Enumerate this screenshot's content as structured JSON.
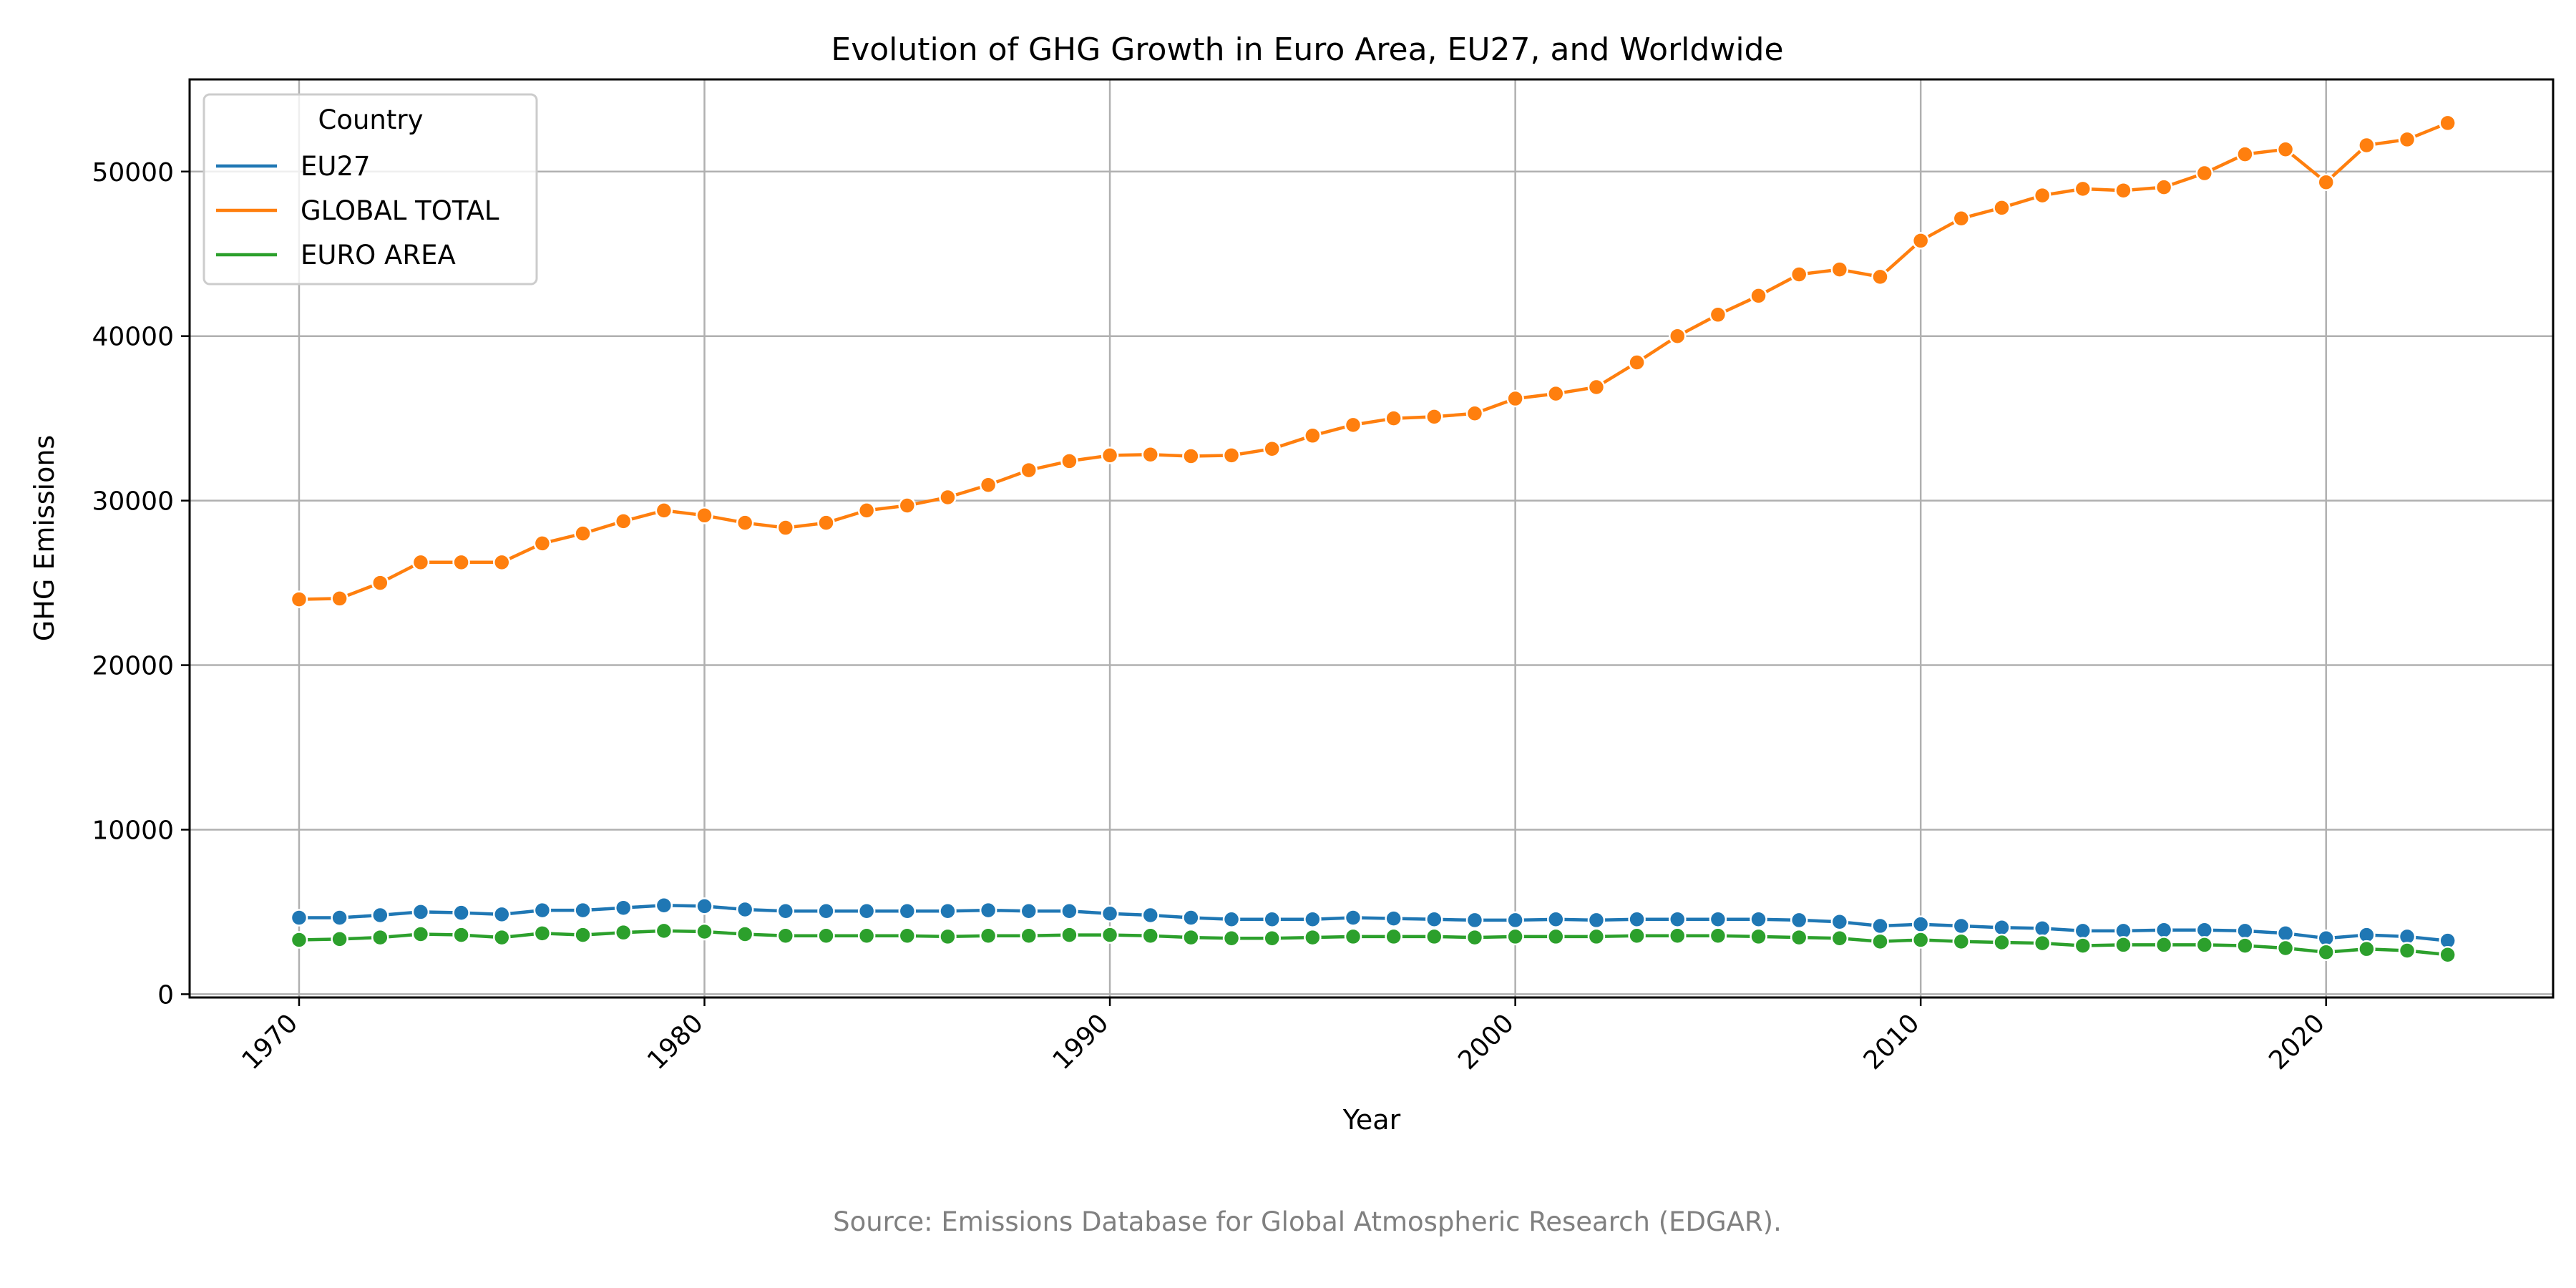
{
  "chart_data": {
    "type": "line",
    "title": "Evolution of GHG Growth in Euro Area, EU27, and Worldwide",
    "xlabel": "Year",
    "ylabel": "GHG Emissions",
    "xlim": [
      1967.3,
      2025.6
    ],
    "ylim": [
      -200,
      55600
    ],
    "x_ticks": [
      1970,
      1980,
      1990,
      2000,
      2010,
      2020
    ],
    "y_ticks": [
      0,
      10000,
      20000,
      30000,
      40000,
      50000
    ],
    "grid": true,
    "legend": {
      "title": "Country",
      "placement": "top-left"
    },
    "source_note": "Source: Emissions Database for Global Atmospheric Research (EDGAR).",
    "x": [
      1970,
      1971,
      1972,
      1973,
      1974,
      1975,
      1976,
      1977,
      1978,
      1979,
      1980,
      1981,
      1982,
      1983,
      1984,
      1985,
      1986,
      1987,
      1988,
      1989,
      1990,
      1991,
      1992,
      1993,
      1994,
      1995,
      1996,
      1997,
      1998,
      1999,
      2000,
      2001,
      2002,
      2003,
      2004,
      2005,
      2006,
      2007,
      2008,
      2009,
      2010,
      2011,
      2012,
      2013,
      2014,
      2015,
      2016,
      2017,
      2018,
      2019,
      2020,
      2021,
      2022,
      2023
    ],
    "series": [
      {
        "name": "EU27",
        "color": "#1f77b4",
        "values": [
          4650,
          4650,
          4800,
          5000,
          4950,
          4850,
          5100,
          5100,
          5250,
          5400,
          5350,
          5150,
          5050,
          5050,
          5050,
          5050,
          5050,
          5100,
          5050,
          5050,
          4900,
          4800,
          4650,
          4550,
          4550,
          4550,
          4650,
          4600,
          4550,
          4500,
          4500,
          4550,
          4500,
          4550,
          4550,
          4550,
          4550,
          4500,
          4400,
          4150,
          4250,
          4150,
          4050,
          4000,
          3850,
          3850,
          3900,
          3900,
          3850,
          3700,
          3400,
          3600,
          3500,
          3250
        ]
      },
      {
        "name": "GLOBAL TOTAL",
        "color": "#ff7f0e",
        "values": [
          24000,
          24050,
          25000,
          26250,
          26250,
          26250,
          27400,
          28000,
          28750,
          29400,
          29100,
          28650,
          28350,
          28650,
          29400,
          29700,
          30200,
          30950,
          31850,
          32400,
          32750,
          32800,
          32700,
          32750,
          33150,
          33950,
          34600,
          35000,
          35100,
          35300,
          36200,
          36500,
          36900,
          38400,
          40000,
          41300,
          42450,
          43750,
          44050,
          43600,
          45800,
          47150,
          47800,
          48550,
          48950,
          48850,
          49050,
          49900,
          51050,
          51350,
          49350,
          51600,
          51950,
          52950
        ]
      },
      {
        "name": "EURO AREA",
        "color": "#2ca02c",
        "values": [
          3300,
          3350,
          3450,
          3650,
          3600,
          3450,
          3700,
          3600,
          3750,
          3850,
          3800,
          3650,
          3550,
          3550,
          3550,
          3550,
          3500,
          3550,
          3550,
          3600,
          3600,
          3550,
          3450,
          3400,
          3400,
          3450,
          3500,
          3500,
          3500,
          3450,
          3500,
          3500,
          3500,
          3550,
          3550,
          3550,
          3500,
          3450,
          3400,
          3200,
          3300,
          3200,
          3150,
          3100,
          2950,
          3000,
          3000,
          3000,
          2950,
          2800,
          2550,
          2750,
          2650,
          2400
        ]
      }
    ]
  }
}
